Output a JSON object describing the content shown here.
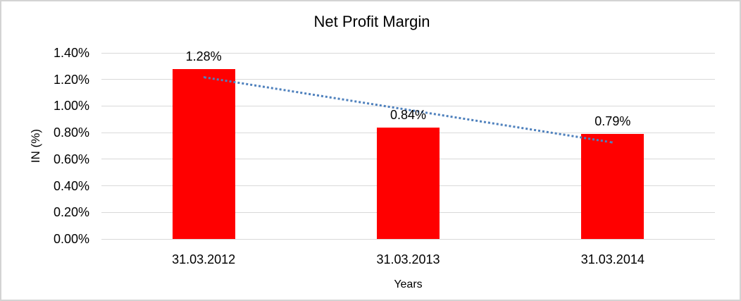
{
  "chart_data": {
    "type": "bar",
    "title": "Net Profit Margin",
    "xlabel": "Years",
    "ylabel": "IN (%)",
    "categories": [
      "31.03.2012",
      "31.03.2013",
      "31.03.2014"
    ],
    "values": [
      1.28,
      0.84,
      0.79
    ],
    "data_labels": [
      "1.28%",
      "0.84%",
      "0.79%"
    ],
    "yticks": [
      "0.00%",
      "0.20%",
      "0.40%",
      "0.60%",
      "0.80%",
      "1.00%",
      "1.20%",
      "1.40%"
    ],
    "ylim": [
      0,
      1.4
    ],
    "grid": true,
    "legend_position": "none",
    "bar_color": "#ff0000",
    "gridline_color": "#d9d9d9",
    "trendline": {
      "type": "linear",
      "line_style": "dotted",
      "color": "#4f81bd",
      "start_value": 1.217,
      "end_value": 0.726
    }
  }
}
